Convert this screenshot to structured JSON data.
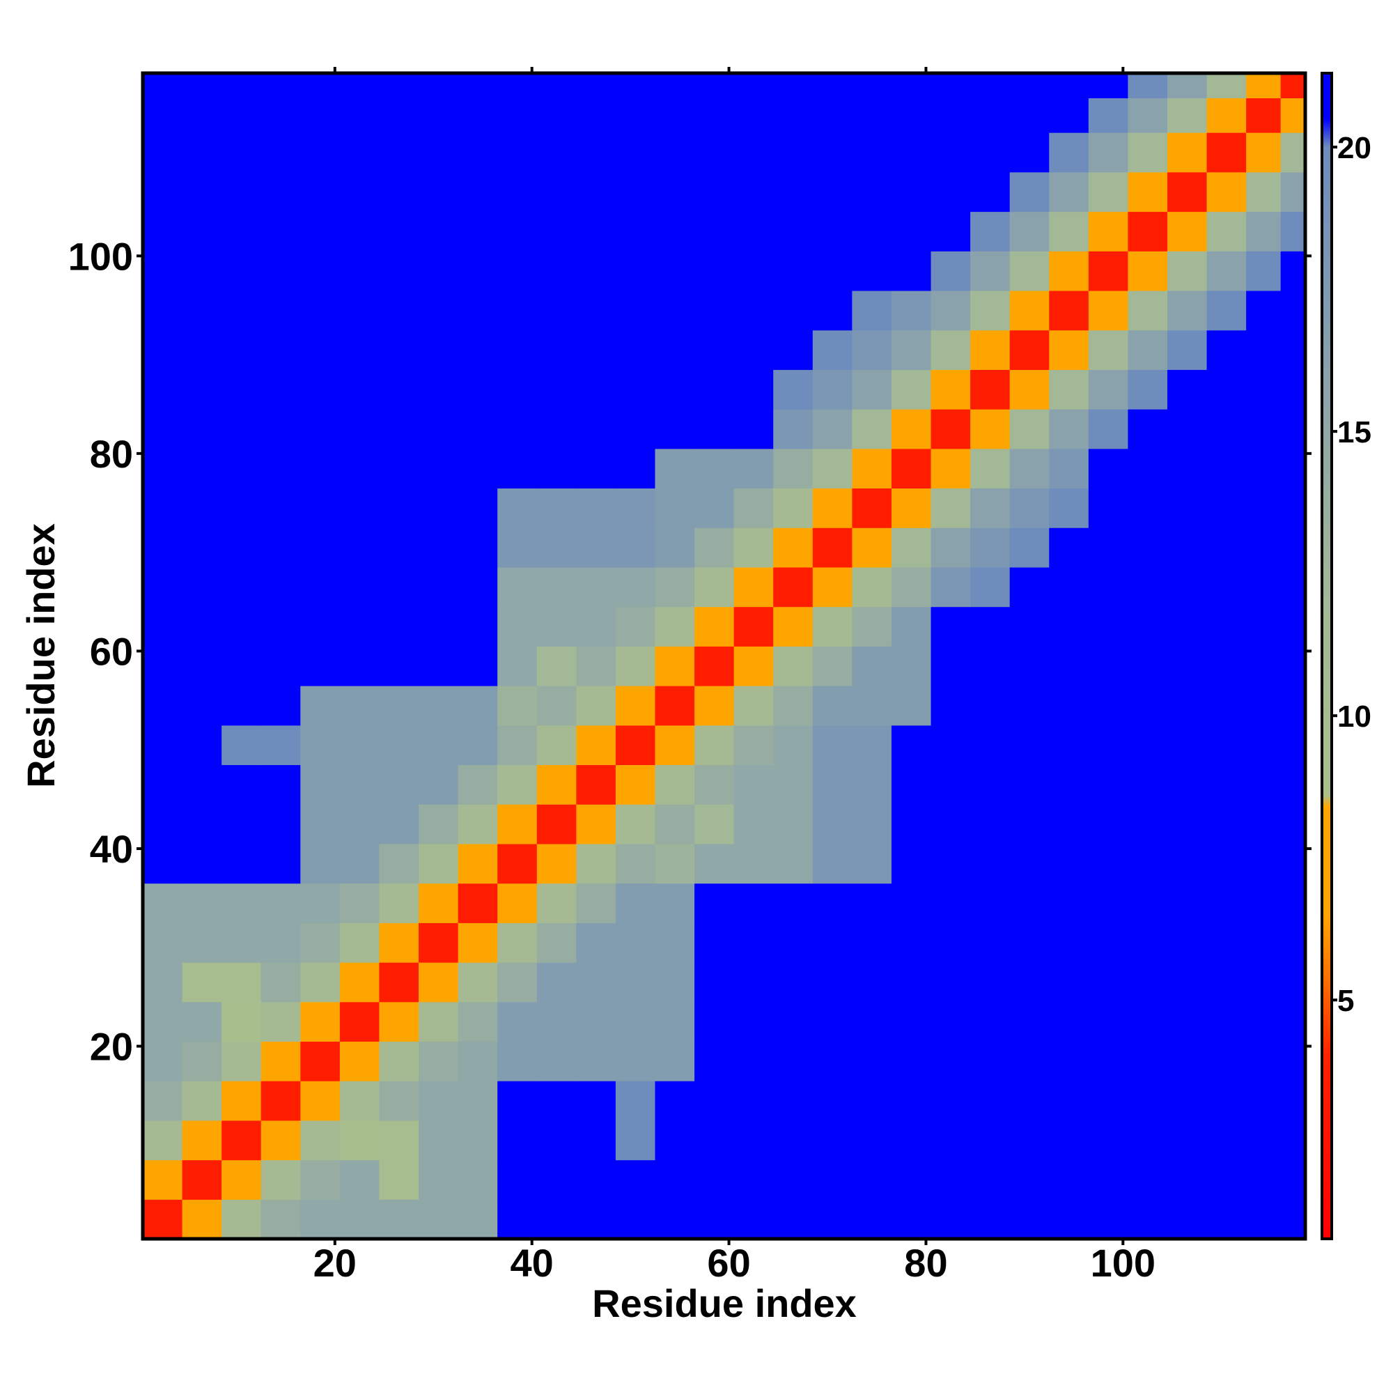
{
  "chart_data": {
    "type": "heatmap",
    "xlabel": "Residue index",
    "ylabel": "Residue index",
    "x": [
      2.5,
      6.5,
      10.5,
      14.5,
      18.5,
      22.5,
      26.5,
      30.5,
      34.5,
      38.5,
      42.5,
      46.5,
      50.5,
      54.5,
      58.5,
      62.5,
      66.5,
      70.5,
      74.5,
      78.5,
      82.5,
      86.5,
      90.5,
      94.5,
      98.5,
      102.5,
      106.5,
      110.5,
      114.5,
      117.5
    ],
    "y": [
      2.5,
      6.5,
      10.5,
      14.5,
      18.5,
      22.5,
      26.5,
      30.5,
      34.5,
      38.5,
      42.5,
      46.5,
      50.5,
      54.5,
      58.5,
      62.5,
      66.5,
      70.5,
      74.5,
      78.5,
      82.5,
      86.5,
      90.5,
      94.5,
      98.5,
      102.5,
      106.5,
      110.5,
      114.5,
      117.5
    ],
    "values": [
      [
        3.5,
        7.5,
        11,
        14,
        15,
        15,
        15,
        15,
        15,
        21,
        21,
        21,
        21,
        21,
        21,
        21,
        21,
        21,
        21,
        21,
        21,
        21,
        21,
        21,
        21,
        21,
        21,
        21,
        21,
        21
      ],
      [
        7.5,
        3.5,
        7.5,
        11,
        14,
        15,
        10,
        15,
        15,
        21,
        21,
        21,
        21,
        21,
        21,
        21,
        21,
        21,
        21,
        21,
        21,
        21,
        21,
        21,
        21,
        21,
        21,
        21,
        21,
        21
      ],
      [
        11,
        7.5,
        3.5,
        7.5,
        11,
        9,
        10,
        15,
        15,
        21,
        21,
        21,
        20,
        21,
        21,
        21,
        21,
        21,
        21,
        21,
        21,
        21,
        21,
        21,
        21,
        21,
        21,
        21,
        21,
        21
      ],
      [
        14,
        11,
        7.5,
        3.5,
        7.5,
        11,
        14,
        15,
        15,
        21,
        21,
        21,
        20,
        21,
        21,
        21,
        21,
        21,
        21,
        21,
        21,
        21,
        21,
        21,
        21,
        21,
        21,
        21,
        21,
        21
      ],
      [
        15,
        14,
        11,
        7.5,
        3.5,
        7.5,
        11,
        14,
        15,
        17,
        17,
        17,
        17,
        17,
        21,
        21,
        21,
        21,
        21,
        21,
        21,
        21,
        21,
        21,
        21,
        21,
        21,
        21,
        21,
        21
      ],
      [
        15,
        15,
        9,
        11,
        7.5,
        3.5,
        7.5,
        11,
        14,
        17,
        17,
        17,
        17,
        17,
        21,
        21,
        21,
        21,
        21,
        21,
        21,
        21,
        21,
        21,
        21,
        21,
        21,
        21,
        21,
        21
      ],
      [
        15,
        10,
        10,
        14,
        11,
        7.5,
        3.5,
        7.5,
        11,
        14,
        17,
        17,
        17,
        17,
        21,
        21,
        21,
        21,
        21,
        21,
        21,
        21,
        21,
        21,
        21,
        21,
        21,
        21,
        21,
        21
      ],
      [
        15,
        15,
        15,
        15,
        14,
        11,
        7.5,
        3.5,
        7.5,
        11,
        14,
        17,
        17,
        17,
        21,
        21,
        21,
        21,
        21,
        21,
        21,
        21,
        21,
        21,
        21,
        21,
        21,
        21,
        21,
        21
      ],
      [
        15,
        15,
        15,
        15,
        15,
        14,
        11,
        7.5,
        3.5,
        7.5,
        11,
        14,
        17,
        17,
        21,
        21,
        21,
        21,
        21,
        21,
        21,
        21,
        21,
        21,
        21,
        21,
        21,
        21,
        21,
        21
      ],
      [
        21,
        21,
        21,
        21,
        17,
        17,
        14,
        11,
        7.5,
        3.5,
        7.5,
        11,
        14,
        13,
        15,
        15,
        15,
        18,
        18,
        21,
        21,
        21,
        21,
        21,
        21,
        21,
        21,
        21,
        21,
        21
      ],
      [
        21,
        21,
        21,
        21,
        17,
        17,
        17,
        14,
        11,
        7.5,
        3.5,
        7.5,
        11,
        14,
        12,
        15,
        15,
        18,
        18,
        21,
        21,
        21,
        21,
        21,
        21,
        21,
        21,
        21,
        21,
        21
      ],
      [
        21,
        21,
        21,
        21,
        17,
        17,
        17,
        17,
        14,
        11,
        7.5,
        3.5,
        7.5,
        11,
        14,
        15,
        15,
        18,
        18,
        21,
        21,
        21,
        21,
        21,
        21,
        21,
        21,
        21,
        21,
        21
      ],
      [
        21,
        21,
        20,
        20,
        17,
        17,
        17,
        17,
        17,
        14,
        11,
        7.5,
        3.5,
        7.5,
        11,
        14,
        15,
        18,
        18,
        21,
        21,
        21,
        21,
        21,
        21,
        21,
        21,
        21,
        21,
        21
      ],
      [
        21,
        21,
        21,
        21,
        17,
        17,
        17,
        17,
        17,
        13,
        14,
        11,
        7.5,
        3.5,
        7.5,
        11,
        14,
        17,
        17,
        17,
        21,
        21,
        21,
        21,
        21,
        21,
        21,
        21,
        21,
        21
      ],
      [
        21,
        21,
        21,
        21,
        21,
        21,
        21,
        21,
        21,
        15,
        12,
        14,
        11,
        7.5,
        3.5,
        7.5,
        11,
        14,
        17,
        17,
        21,
        21,
        21,
        21,
        21,
        21,
        21,
        21,
        21,
        21
      ],
      [
        21,
        21,
        21,
        21,
        21,
        21,
        21,
        21,
        21,
        15,
        15,
        15,
        14,
        11,
        7.5,
        3.5,
        7.5,
        11,
        14,
        17,
        21,
        21,
        21,
        21,
        21,
        21,
        21,
        21,
        21,
        21
      ],
      [
        21,
        21,
        21,
        21,
        21,
        21,
        21,
        21,
        21,
        15,
        15,
        15,
        15,
        14,
        11,
        7.5,
        3.5,
        7.5,
        11,
        14,
        18,
        20,
        21,
        21,
        21,
        21,
        21,
        21,
        21,
        21
      ],
      [
        21,
        21,
        21,
        21,
        21,
        21,
        21,
        21,
        21,
        18,
        18,
        18,
        18,
        17,
        14,
        11,
        7.5,
        3.5,
        8,
        12,
        16,
        18,
        20,
        21,
        21,
        21,
        21,
        21,
        21,
        21
      ],
      [
        21,
        21,
        21,
        21,
        21,
        21,
        21,
        21,
        21,
        18,
        18,
        18,
        18,
        17,
        17,
        14,
        11,
        8,
        3.5,
        8,
        12,
        16,
        18,
        20,
        21,
        21,
        21,
        21,
        21,
        21
      ],
      [
        21,
        21,
        21,
        21,
        21,
        21,
        21,
        21,
        21,
        21,
        21,
        21,
        21,
        17,
        17,
        17,
        14,
        12,
        8,
        3.5,
        8,
        12,
        16,
        18,
        21,
        21,
        21,
        21,
        21,
        21
      ],
      [
        21,
        21,
        21,
        21,
        21,
        21,
        21,
        21,
        21,
        21,
        21,
        21,
        21,
        21,
        21,
        21,
        18,
        16,
        12,
        8,
        3.5,
        8,
        12,
        16,
        20,
        21,
        21,
        21,
        21,
        21
      ],
      [
        21,
        21,
        21,
        21,
        21,
        21,
        21,
        21,
        21,
        21,
        21,
        21,
        21,
        21,
        21,
        21,
        20,
        18,
        16,
        12,
        8,
        3.5,
        8,
        12,
        16,
        20,
        21,
        21,
        21,
        21
      ],
      [
        21,
        21,
        21,
        21,
        21,
        21,
        21,
        21,
        21,
        21,
        21,
        21,
        21,
        21,
        21,
        21,
        21,
        20,
        18,
        16,
        12,
        8,
        3.5,
        8,
        12,
        16,
        20,
        21,
        21,
        21
      ],
      [
        21,
        21,
        21,
        21,
        21,
        21,
        21,
        21,
        21,
        21,
        21,
        21,
        21,
        21,
        21,
        21,
        21,
        21,
        20,
        18,
        16,
        12,
        8,
        3.5,
        8,
        12,
        16,
        20,
        21,
        21
      ],
      [
        21,
        21,
        21,
        21,
        21,
        21,
        21,
        21,
        21,
        21,
        21,
        21,
        21,
        21,
        21,
        21,
        21,
        21,
        21,
        21,
        20,
        16,
        12,
        8,
        3.5,
        8,
        12,
        16,
        20,
        21
      ],
      [
        21,
        21,
        21,
        21,
        21,
        21,
        21,
        21,
        21,
        21,
        21,
        21,
        21,
        21,
        21,
        21,
        21,
        21,
        21,
        21,
        21,
        20,
        16,
        12,
        8,
        3.5,
        8,
        12,
        16,
        20
      ],
      [
        21,
        21,
        21,
        21,
        21,
        21,
        21,
        21,
        21,
        21,
        21,
        21,
        21,
        21,
        21,
        21,
        21,
        21,
        21,
        21,
        21,
        21,
        20,
        16,
        12,
        8,
        3.5,
        8,
        12,
        16
      ],
      [
        21,
        21,
        21,
        21,
        21,
        21,
        21,
        21,
        21,
        21,
        21,
        21,
        21,
        21,
        21,
        21,
        21,
        21,
        21,
        21,
        21,
        21,
        21,
        20,
        16,
        12,
        8,
        3.5,
        8,
        12
      ],
      [
        21,
        21,
        21,
        21,
        21,
        21,
        21,
        21,
        21,
        21,
        21,
        21,
        21,
        21,
        21,
        21,
        21,
        21,
        21,
        21,
        21,
        21,
        21,
        21,
        20,
        16,
        12,
        8,
        3.5,
        8
      ],
      [
        21,
        21,
        21,
        21,
        21,
        21,
        21,
        21,
        21,
        21,
        21,
        21,
        21,
        21,
        21,
        21,
        21,
        21,
        21,
        21,
        21,
        21,
        21,
        21,
        21,
        20,
        16,
        12,
        8,
        3.5
      ]
    ],
    "xlim": [
      0.5,
      118.5
    ],
    "ylim": [
      0.5,
      118.5
    ],
    "xticks": [
      20,
      40,
      60,
      80,
      100
    ],
    "yticks": [
      20,
      40,
      60,
      80,
      100
    ],
    "clim": [
      0.8,
      21.3
    ],
    "cticks": [
      5,
      10,
      15,
      20
    ],
    "colorscale": [
      [
        0.8,
        "#ff0000"
      ],
      [
        4,
        "#ff2200"
      ],
      [
        5.5,
        "#ff7700"
      ],
      [
        6.5,
        "#ffa500"
      ],
      [
        8.4,
        "#ffa500"
      ],
      [
        8.6,
        "#a9c08c"
      ],
      [
        12,
        "#a3b896"
      ],
      [
        16,
        "#8aa2ac"
      ],
      [
        20,
        "#6e8cbc"
      ],
      [
        20.5,
        "#0000ff"
      ],
      [
        21.3,
        "#0000ff"
      ]
    ]
  }
}
